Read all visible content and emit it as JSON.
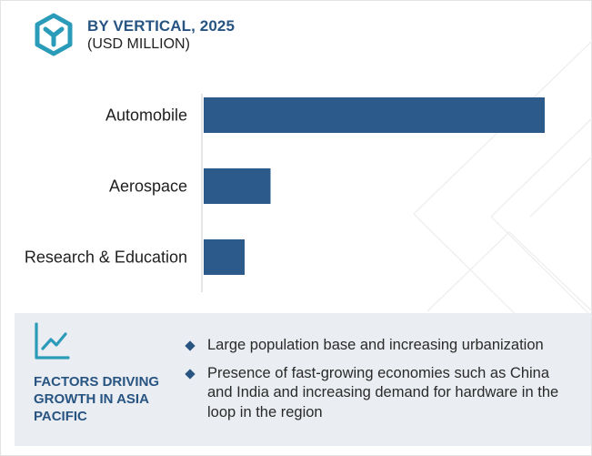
{
  "header": {
    "title": "BY VERTICAL, 2025",
    "subtitle": "(USD MILLION)",
    "logo_icon": "hexagon-logo-icon",
    "accent_color": "#285482"
  },
  "chart_data": {
    "type": "bar",
    "orientation": "horizontal",
    "categories": [
      "Automobile",
      "Aerospace",
      "Research & Education"
    ],
    "values": [
      100,
      19.6,
      12
    ],
    "title": "BY VERTICAL, 2025",
    "subtitle": "(USD MILLION)",
    "xlabel": "",
    "ylabel": "",
    "value_axis_visible": false,
    "grid": false,
    "legend": "none",
    "bar_color": "#2c5a8a"
  },
  "factors": {
    "icon": "trend-line-icon",
    "heading": "FACTORS DRIVING GROWTH IN ASIA PACIFIC",
    "points": [
      "Large population base and increasing urbanization",
      "Presence of fast-growing economies such as China and India and increasing demand for hardware in the loop in the region"
    ]
  }
}
